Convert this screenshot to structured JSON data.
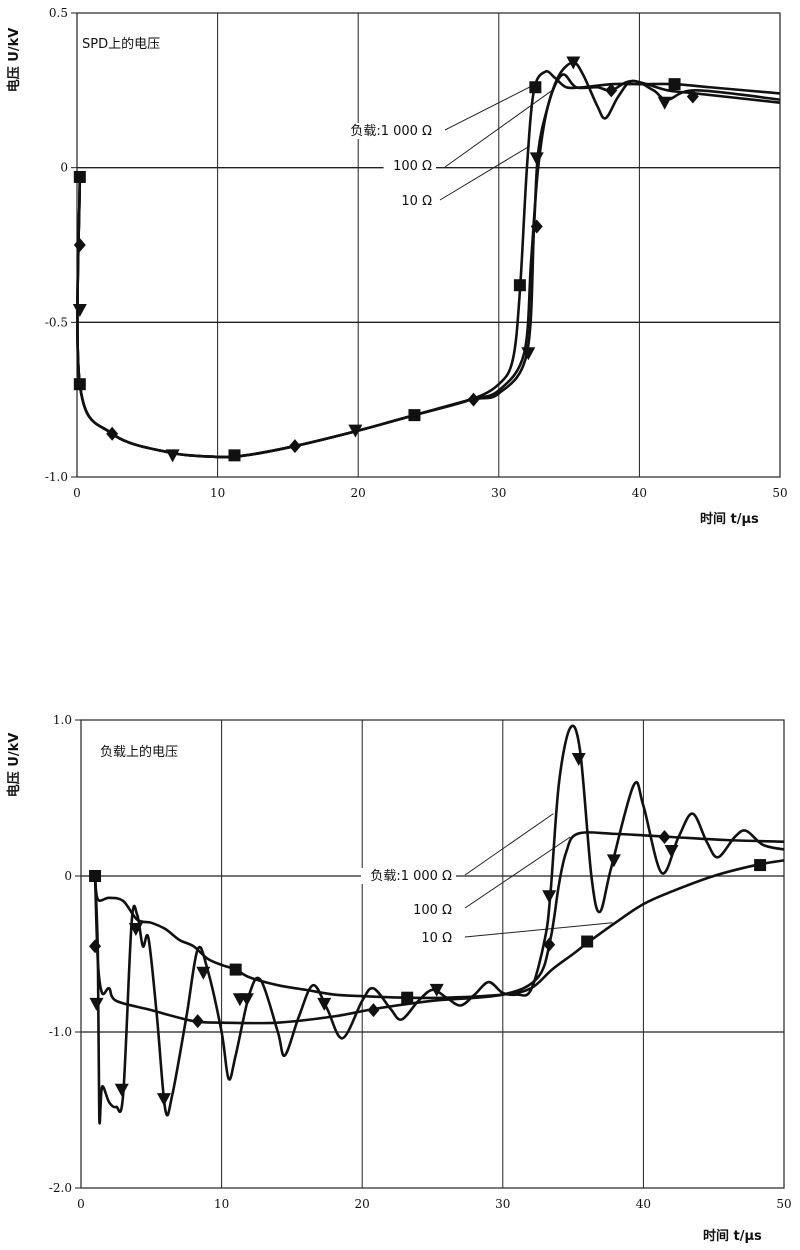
{
  "chart_data": [
    {
      "type": "line",
      "title": "SPD上的电压",
      "xlabel": "时间 t/μs",
      "ylabel": "电压 U/kV",
      "xlim": [
        0,
        50
      ],
      "ylim": [
        -1.0,
        0.5
      ],
      "xticks": [
        0,
        10,
        20,
        30,
        40,
        50
      ],
      "xtick_labels": [
        "0",
        "10",
        "20",
        "30",
        "40",
        "50"
      ],
      "yticks": [
        0.5,
        0,
        -0.5,
        -1.0
      ],
      "ytick_labels": [
        "0.5",
        "0",
        "-0.5",
        "-1.0"
      ],
      "grid": true,
      "annotations": [
        {
          "text": "负载:1 000 Ω",
          "points_to": [
            32.6,
            0.27
          ]
        },
        {
          "text": "100 Ω",
          "points_to": [
            33.8,
            0.25
          ]
        },
        {
          "text": "10 Ω",
          "points_to": [
            32.2,
            0.07
          ]
        }
      ],
      "series": [
        {
          "name": "10 Ω",
          "marker": "square",
          "points": [
            [
              0.2,
              -0.03
            ],
            [
              0.2,
              -0.7
            ],
            [
              2.5,
              -0.86
            ],
            [
              6.5,
              -0.92
            ],
            [
              10,
              -0.935
            ],
            [
              12,
              -0.93
            ],
            [
              15.5,
              -0.9
            ],
            [
              20,
              -0.85
            ],
            [
              24,
              -0.8
            ],
            [
              28,
              -0.75
            ],
            [
              30,
              -0.7
            ],
            [
              31,
              -0.62
            ],
            [
              31.5,
              -0.4
            ],
            [
              32,
              0.0
            ],
            [
              32.5,
              0.25
            ],
            [
              33.3,
              0.31
            ],
            [
              34,
              0.29
            ],
            [
              34.8,
              0.26
            ],
            [
              36,
              0.26
            ],
            [
              38,
              0.27
            ],
            [
              40,
              0.27
            ],
            [
              42.5,
              0.27
            ],
            [
              45,
              0.26
            ],
            [
              50,
              0.24
            ]
          ],
          "markers": [
            [
              0.2,
              -0.03
            ],
            [
              0.2,
              -0.7
            ],
            [
              11.2,
              -0.93
            ],
            [
              24,
              -0.8
            ],
            [
              31.5,
              -0.38
            ],
            [
              32.6,
              0.26
            ],
            [
              42.5,
              0.27
            ]
          ]
        },
        {
          "name": "100 Ω",
          "marker": "diamond",
          "points": [
            [
              0.2,
              -0.03
            ],
            [
              0.2,
              -0.7
            ],
            [
              2.5,
              -0.86
            ],
            [
              6.5,
              -0.92
            ],
            [
              10,
              -0.935
            ],
            [
              12,
              -0.93
            ],
            [
              15.5,
              -0.9
            ],
            [
              20,
              -0.85
            ],
            [
              24,
              -0.8
            ],
            [
              28,
              -0.75
            ],
            [
              30,
              -0.72
            ],
            [
              31.8,
              -0.6
            ],
            [
              32.3,
              -0.3
            ],
            [
              32.8,
              0.0
            ],
            [
              33.5,
              0.2
            ],
            [
              34.5,
              0.3
            ],
            [
              35.5,
              0.26
            ],
            [
              37,
              0.26
            ],
            [
              38,
              0.25
            ],
            [
              39.5,
              0.28
            ],
            [
              42,
              0.25
            ],
            [
              44,
              0.24
            ],
            [
              50,
              0.21
            ]
          ],
          "markers": [
            [
              0.2,
              -0.25
            ],
            [
              2.5,
              -0.86
            ],
            [
              15.5,
              -0.9
            ],
            [
              28.2,
              -0.75
            ],
            [
              32.7,
              -0.19
            ],
            [
              38,
              0.25
            ],
            [
              43.8,
              0.23
            ]
          ]
        },
        {
          "name": "1 000 Ω",
          "marker": "triangle",
          "points": [
            [
              0.2,
              -0.03
            ],
            [
              0.2,
              -0.7
            ],
            [
              2.5,
              -0.86
            ],
            [
              6.5,
              -0.92
            ],
            [
              10,
              -0.935
            ],
            [
              12,
              -0.93
            ],
            [
              15.5,
              -0.9
            ],
            [
              20,
              -0.85
            ],
            [
              24,
              -0.8
            ],
            [
              28,
              -0.75
            ],
            [
              30,
              -0.73
            ],
            [
              32,
              -0.6
            ],
            [
              32.5,
              -0.2
            ],
            [
              32.8,
              0.05
            ],
            [
              33.5,
              0.2
            ],
            [
              34.3,
              0.3
            ],
            [
              35.3,
              0.34
            ],
            [
              36,
              0.3
            ],
            [
              37,
              0.2
            ],
            [
              37.6,
              0.16
            ],
            [
              38.5,
              0.23
            ],
            [
              39.5,
              0.28
            ],
            [
              41,
              0.25
            ],
            [
              42,
              0.22
            ],
            [
              44,
              0.25
            ],
            [
              50,
              0.22
            ]
          ],
          "markers": [
            [
              0.2,
              -0.46
            ],
            [
              6.8,
              -0.93
            ],
            [
              19.8,
              -0.85
            ],
            [
              32.1,
              -0.6
            ],
            [
              32.7,
              0.03
            ],
            [
              35.3,
              0.34
            ],
            [
              41.8,
              0.21
            ]
          ]
        }
      ]
    },
    {
      "type": "line",
      "title": "负载上的电压",
      "xlabel": "时间 t/μs",
      "ylabel": "电压 U/kV",
      "xlim": [
        0,
        50
      ],
      "ylim": [
        -2.0,
        1.0
      ],
      "xticks": [
        0,
        10,
        20,
        30,
        40,
        50
      ],
      "xtick_labels": [
        "0",
        "10",
        "20",
        "30",
        "40",
        "50"
      ],
      "yticks": [
        1.0,
        0,
        -1.0,
        -2.0
      ],
      "ytick_labels": [
        "1.0",
        "0",
        "-1.0",
        "-2.0"
      ],
      "grid": true,
      "annotations": [
        {
          "text": "负载:1 000 Ω",
          "points_to": [
            33.6,
            0.4
          ]
        },
        {
          "text": "100 Ω",
          "points_to": [
            34.8,
            0.25
          ]
        },
        {
          "text": "10 Ω",
          "points_to": [
            37.8,
            -0.3
          ]
        }
      ],
      "series": [
        {
          "name": "10 Ω",
          "marker": "square",
          "points": [
            [
              1,
              0
            ],
            [
              1.2,
              -0.15
            ],
            [
              2,
              -0.14
            ],
            [
              3,
              -0.16
            ],
            [
              4,
              -0.28
            ],
            [
              5,
              -0.3
            ],
            [
              6,
              -0.34
            ],
            [
              7,
              -0.41
            ],
            [
              8,
              -0.45
            ],
            [
              9,
              -0.53
            ],
            [
              10,
              -0.57
            ],
            [
              11,
              -0.6
            ],
            [
              12,
              -0.65
            ],
            [
              14,
              -0.7
            ],
            [
              16,
              -0.73
            ],
            [
              18,
              -0.76
            ],
            [
              20,
              -0.77
            ],
            [
              23,
              -0.78
            ],
            [
              26,
              -0.78
            ],
            [
              30,
              -0.76
            ],
            [
              32,
              -0.72
            ],
            [
              33.5,
              -0.6
            ],
            [
              35,
              -0.5
            ],
            [
              36,
              -0.43
            ],
            [
              38,
              -0.3
            ],
            [
              40,
              -0.18
            ],
            [
              42,
              -0.1
            ],
            [
              45,
              0.0
            ],
            [
              48,
              0.07
            ],
            [
              50,
              0.1
            ]
          ],
          "markers": [
            [
              1,
              0
            ],
            [
              11,
              -0.6
            ],
            [
              23.2,
              -0.78
            ],
            [
              36,
              -0.42
            ],
            [
              48.3,
              0.07
            ]
          ]
        },
        {
          "name": "100 Ω",
          "marker": "diamond",
          "points": [
            [
              1,
              0
            ],
            [
              1.2,
              -0.55
            ],
            [
              1.5,
              -0.75
            ],
            [
              2,
              -0.72
            ],
            [
              2.5,
              -0.8
            ],
            [
              5,
              -0.86
            ],
            [
              8,
              -0.93
            ],
            [
              10,
              -0.94
            ],
            [
              14,
              -0.94
            ],
            [
              18,
              -0.9
            ],
            [
              21,
              -0.85
            ],
            [
              25,
              -0.8
            ],
            [
              30,
              -0.76
            ],
            [
              32.5,
              -0.65
            ],
            [
              33.4,
              -0.4
            ],
            [
              34,
              -0.05
            ],
            [
              34.5,
              0.15
            ],
            [
              35.3,
              0.27
            ],
            [
              38,
              0.27
            ],
            [
              42,
              0.25
            ],
            [
              46,
              0.23
            ],
            [
              50,
              0.22
            ]
          ],
          "markers": [
            [
              1,
              -0.45
            ],
            [
              8.3,
              -0.93
            ],
            [
              20.8,
              -0.86
            ],
            [
              33.3,
              -0.44
            ],
            [
              41.5,
              0.25
            ]
          ]
        },
        {
          "name": "1 000 Ω",
          "marker": "triangle",
          "points": [
            [
              1,
              0
            ],
            [
              1.2,
              -0.5
            ],
            [
              1.3,
              -1.55
            ],
            [
              1.5,
              -1.35
            ],
            [
              2,
              -1.45
            ],
            [
              2.5,
              -1.48
            ],
            [
              3,
              -1.4
            ],
            [
              3.6,
              -0.3
            ],
            [
              4,
              -0.25
            ],
            [
              4.4,
              -0.45
            ],
            [
              4.8,
              -0.4
            ],
            [
              5.4,
              -0.9
            ],
            [
              6,
              -1.5
            ],
            [
              6.5,
              -1.4
            ],
            [
              7.5,
              -0.9
            ],
            [
              8.3,
              -0.47
            ],
            [
              9,
              -0.6
            ],
            [
              10,
              -1.0
            ],
            [
              10.5,
              -1.3
            ],
            [
              11,
              -1.15
            ],
            [
              12,
              -0.75
            ],
            [
              12.8,
              -0.67
            ],
            [
              14,
              -1.0
            ],
            [
              14.5,
              -1.15
            ],
            [
              15.5,
              -0.9
            ],
            [
              16.5,
              -0.7
            ],
            [
              17.5,
              -0.85
            ],
            [
              18.6,
              -1.04
            ],
            [
              20,
              -0.8
            ],
            [
              20.8,
              -0.72
            ],
            [
              22,
              -0.85
            ],
            [
              22.8,
              -0.92
            ],
            [
              24,
              -0.8
            ],
            [
              25,
              -0.73
            ],
            [
              26,
              -0.78
            ],
            [
              27,
              -0.83
            ],
            [
              28,
              -0.76
            ],
            [
              29,
              -0.68
            ],
            [
              30,
              -0.75
            ],
            [
              31,
              -0.76
            ],
            [
              32,
              -0.73
            ],
            [
              33,
              -0.4
            ],
            [
              33.4,
              -0.1
            ],
            [
              34,
              0.6
            ],
            [
              34.8,
              0.95
            ],
            [
              35.5,
              0.8
            ],
            [
              36.3,
              0.0
            ],
            [
              36.9,
              -0.23
            ],
            [
              37.7,
              0.05
            ],
            [
              39.3,
              0.58
            ],
            [
              40,
              0.45
            ],
            [
              41.3,
              0.02
            ],
            [
              42.5,
              0.25
            ],
            [
              43.5,
              0.4
            ],
            [
              44.5,
              0.22
            ],
            [
              45.3,
              0.12
            ],
            [
              46.5,
              0.25
            ],
            [
              47.3,
              0.29
            ],
            [
              48.5,
              0.2
            ],
            [
              50,
              0.17
            ]
          ],
          "markers": [
            [
              1.1,
              -0.82
            ],
            [
              2.9,
              -1.37
            ],
            [
              3.9,
              -0.34
            ],
            [
              5.9,
              -1.43
            ],
            [
              8.7,
              -0.62
            ],
            [
              11.3,
              -0.79
            ],
            [
              11.8,
              -0.79
            ],
            [
              17.3,
              -0.82
            ],
            [
              25.3,
              -0.73
            ],
            [
              33.3,
              -0.13
            ],
            [
              35.4,
              0.75
            ],
            [
              37.9,
              0.1
            ],
            [
              42,
              0.16
            ]
          ]
        }
      ]
    }
  ]
}
